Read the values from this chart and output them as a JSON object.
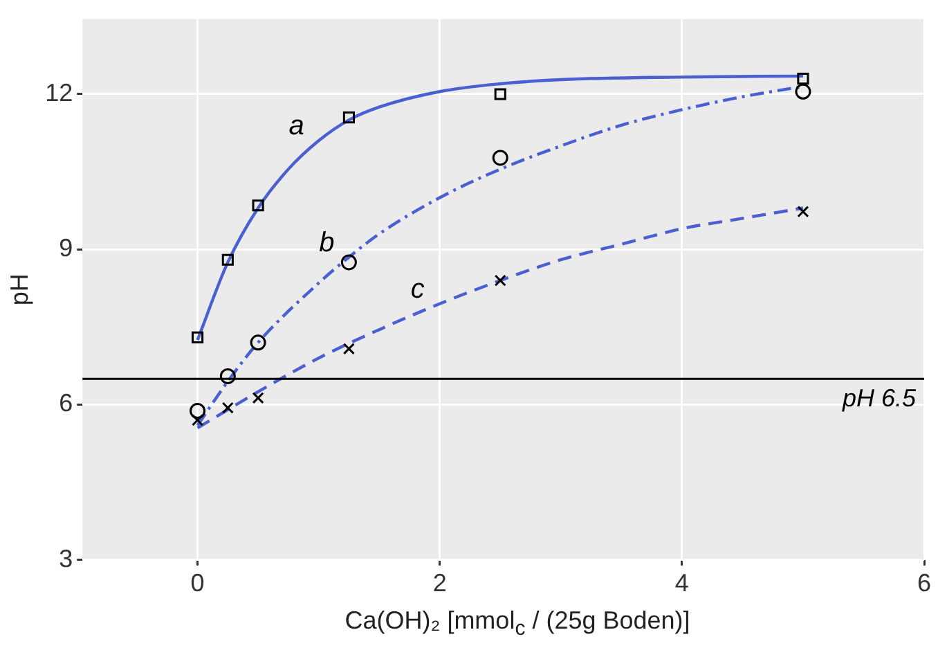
{
  "chart_data": {
    "type": "scatter",
    "xlabel": "Ca(OH)₂ [mmol$_{c}$ / (25g Boden)]",
    "ylabel": "pH",
    "xlim": [
      -0.95,
      6
    ],
    "ylim": [
      3,
      13.45
    ],
    "xticks": [
      0,
      2,
      4,
      6
    ],
    "yticks": [
      3,
      6,
      9,
      12
    ],
    "grid": true,
    "legend": false,
    "series": [
      {
        "marker": "square",
        "color": "#000000",
        "x": [
          0,
          0.25,
          0.5,
          1.25,
          2.5,
          5
        ],
        "values": [
          7.3,
          8.8,
          9.85,
          11.55,
          12.0,
          12.3
        ]
      },
      {
        "marker": "circle",
        "color": "#000000",
        "x": [
          0,
          0.25,
          0.5,
          1.25,
          2.5,
          5
        ],
        "values": [
          5.88,
          6.55,
          7.2,
          8.75,
          10.77,
          12.05
        ]
      },
      {
        "marker": "cross",
        "color": "#000000",
        "x": [
          0,
          0.25,
          0.5,
          1.25,
          2.5,
          5
        ],
        "values": [
          5.7,
          5.94,
          6.13,
          7.08,
          8.4,
          9.73
        ]
      },
      {
        "type": "line",
        "name": "a",
        "marker": "none",
        "line_style": "solid",
        "color": "#4a5fd0",
        "x": [
          0,
          0.25,
          0.5,
          0.75,
          1,
          1.25,
          1.5,
          2,
          2.5,
          3,
          4,
          5
        ],
        "values": [
          7.25,
          8.75,
          9.8,
          10.55,
          11.1,
          11.5,
          11.75,
          12.05,
          12.2,
          12.28,
          12.33,
          12.35
        ]
      },
      {
        "type": "line",
        "name": "b",
        "marker": "none",
        "line_style": "dashdot",
        "color": "#4a5fd0",
        "x": [
          0,
          0.25,
          0.5,
          1,
          1.25,
          1.5,
          2,
          2.5,
          3,
          3.5,
          4,
          4.5,
          5
        ],
        "values": [
          5.6,
          6.45,
          7.2,
          8.35,
          8.85,
          9.3,
          10.0,
          10.55,
          11.0,
          11.4,
          11.7,
          11.95,
          12.15
        ]
      },
      {
        "type": "line",
        "name": "c",
        "marker": "none",
        "line_style": "dashed",
        "color": "#4a5fd0",
        "x": [
          0,
          0.5,
          1,
          1.5,
          2,
          2.5,
          3,
          3.5,
          4,
          4.5,
          5
        ],
        "values": [
          5.55,
          6.25,
          6.9,
          7.45,
          7.95,
          8.4,
          8.8,
          9.1,
          9.4,
          9.6,
          9.8
        ]
      }
    ],
    "ref_lines": [
      {
        "axis": "y",
        "value": 6.5,
        "label": "pH 6.5",
        "color": "#000000"
      }
    ]
  }
}
